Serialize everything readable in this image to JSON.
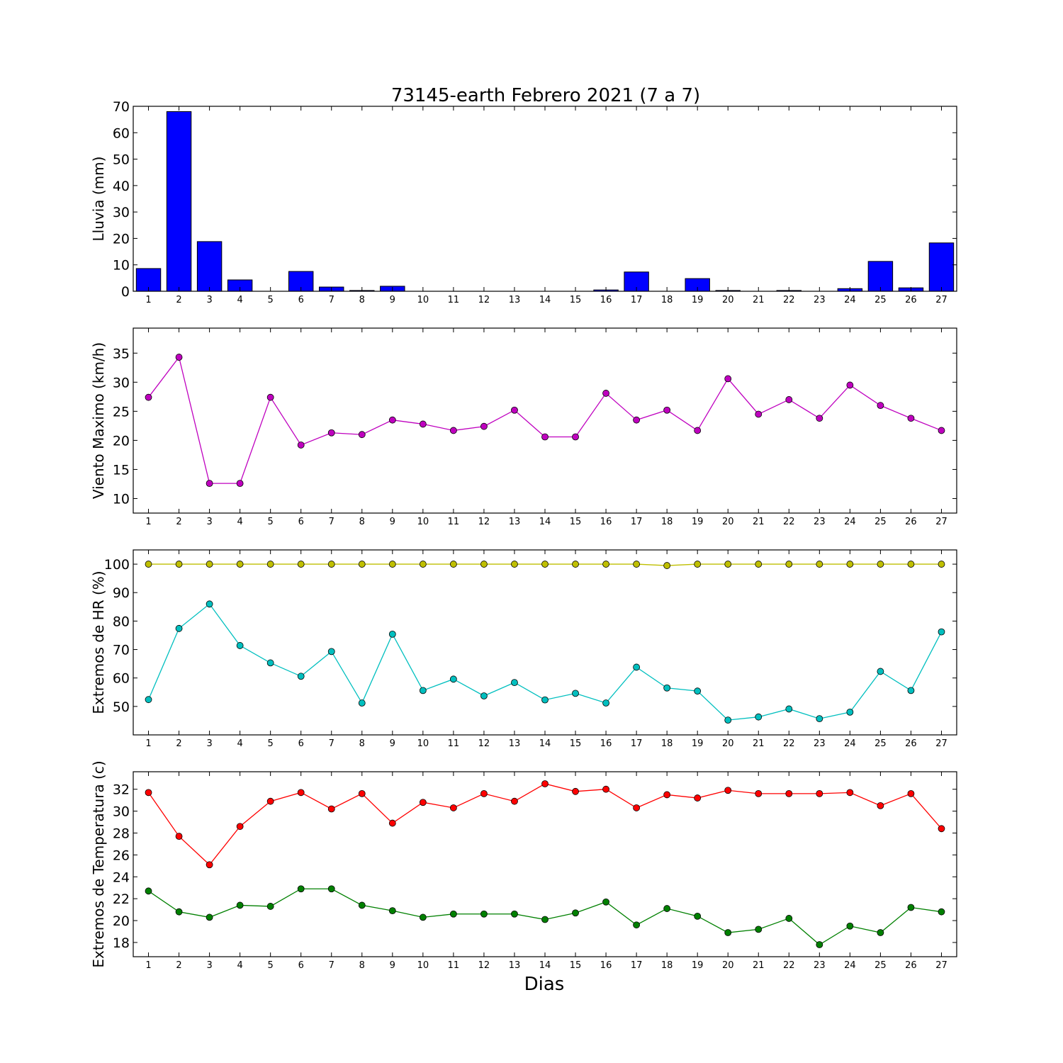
{
  "title": "73145-earth Febrero 2021  (7 a 7)",
  "xlabel": "Dias",
  "chart_data": [
    {
      "type": "bar",
      "ylabel": "Lluvia (mm)",
      "x": [
        1,
        2,
        3,
        4,
        5,
        6,
        7,
        8,
        9,
        10,
        11,
        12,
        13,
        14,
        15,
        16,
        17,
        18,
        19,
        20,
        21,
        22,
        23,
        24,
        25,
        26,
        27
      ],
      "ylim": [
        0,
        70
      ],
      "yticks": [
        0,
        10,
        20,
        30,
        40,
        50,
        60,
        70
      ],
      "series": [
        {
          "color": "#0000ff",
          "values": [
            8.6,
            68.0,
            18.8,
            4.3,
            0,
            7.5,
            1.6,
            0.3,
            1.9,
            0,
            0,
            0,
            0,
            0,
            0,
            0.5,
            7.3,
            0,
            4.8,
            0.3,
            0,
            0.3,
            0,
            1.0,
            11.3,
            1.3,
            18.3
          ]
        }
      ]
    },
    {
      "type": "line",
      "ylabel": "Viento Maximo (km/h)",
      "x": [
        1,
        2,
        3,
        4,
        5,
        6,
        7,
        8,
        9,
        10,
        11,
        12,
        13,
        14,
        15,
        16,
        17,
        18,
        19,
        20,
        21,
        22,
        23,
        24,
        25,
        26,
        27
      ],
      "ylim": [
        7.5,
        39.3
      ],
      "yticks": [
        10,
        15,
        20,
        25,
        30,
        35
      ],
      "series": [
        {
          "color": "#bf00bf",
          "values": [
            27.4,
            34.3,
            12.6,
            12.6,
            27.4,
            19.2,
            21.3,
            21.0,
            23.5,
            22.8,
            21.7,
            22.4,
            25.2,
            20.6,
            20.6,
            28.1,
            23.5,
            25.2,
            21.7,
            30.6,
            24.5,
            27.0,
            23.8,
            29.5,
            26.0,
            23.8,
            21.7
          ]
        }
      ]
    },
    {
      "type": "line",
      "ylabel": "Extremos de HR (%)",
      "x": [
        1,
        2,
        3,
        4,
        5,
        6,
        7,
        8,
        9,
        10,
        11,
        12,
        13,
        14,
        15,
        16,
        17,
        18,
        19,
        20,
        21,
        22,
        23,
        24,
        25,
        26,
        27
      ],
      "ylim": [
        40,
        105
      ],
      "yticks": [
        50,
        60,
        70,
        80,
        90,
        100
      ],
      "series": [
        {
          "color": "#bfbf00",
          "values": [
            100,
            100,
            100,
            100,
            100,
            100,
            100,
            100,
            100,
            100,
            100,
            100,
            100,
            100,
            100,
            100,
            100,
            99.5,
            100,
            100,
            100,
            100,
            100,
            100,
            100,
            100,
            100
          ]
        },
        {
          "color": "#00bfbf",
          "values": [
            52.4,
            77.4,
            86.0,
            71.4,
            65.3,
            60.6,
            69.3,
            51.2,
            75.4,
            55.6,
            59.6,
            53.7,
            58.4,
            52.3,
            54.6,
            51.2,
            63.8,
            56.5,
            55.4,
            45.2,
            46.3,
            49.1,
            45.7,
            48.0,
            62.3,
            55.6,
            76.2
          ]
        }
      ]
    },
    {
      "type": "line",
      "ylabel": "Extremos de Temperatura (c)",
      "x": [
        1,
        2,
        3,
        4,
        5,
        6,
        7,
        8,
        9,
        10,
        11,
        12,
        13,
        14,
        15,
        16,
        17,
        18,
        19,
        20,
        21,
        22,
        23,
        24,
        25,
        26,
        27
      ],
      "ylim": [
        16.7,
        33.6
      ],
      "yticks": [
        18,
        20,
        22,
        24,
        26,
        28,
        30,
        32
      ],
      "series": [
        {
          "color": "#ff0000",
          "values": [
            31.7,
            27.7,
            25.1,
            28.6,
            30.9,
            31.7,
            30.2,
            31.6,
            28.9,
            30.8,
            30.3,
            31.6,
            30.9,
            32.5,
            31.8,
            32.0,
            30.3,
            31.5,
            31.2,
            31.9,
            31.6,
            31.6,
            31.6,
            31.7,
            30.5,
            31.6,
            28.4
          ]
        },
        {
          "color": "#008000",
          "values": [
            22.7,
            20.8,
            20.3,
            21.4,
            21.3,
            22.9,
            22.9,
            21.4,
            20.9,
            20.3,
            20.6,
            20.6,
            20.6,
            20.1,
            20.7,
            21.7,
            19.6,
            21.1,
            20.4,
            18.9,
            19.2,
            20.2,
            17.8,
            19.5,
            18.9,
            21.2,
            20.8
          ]
        }
      ]
    }
  ]
}
